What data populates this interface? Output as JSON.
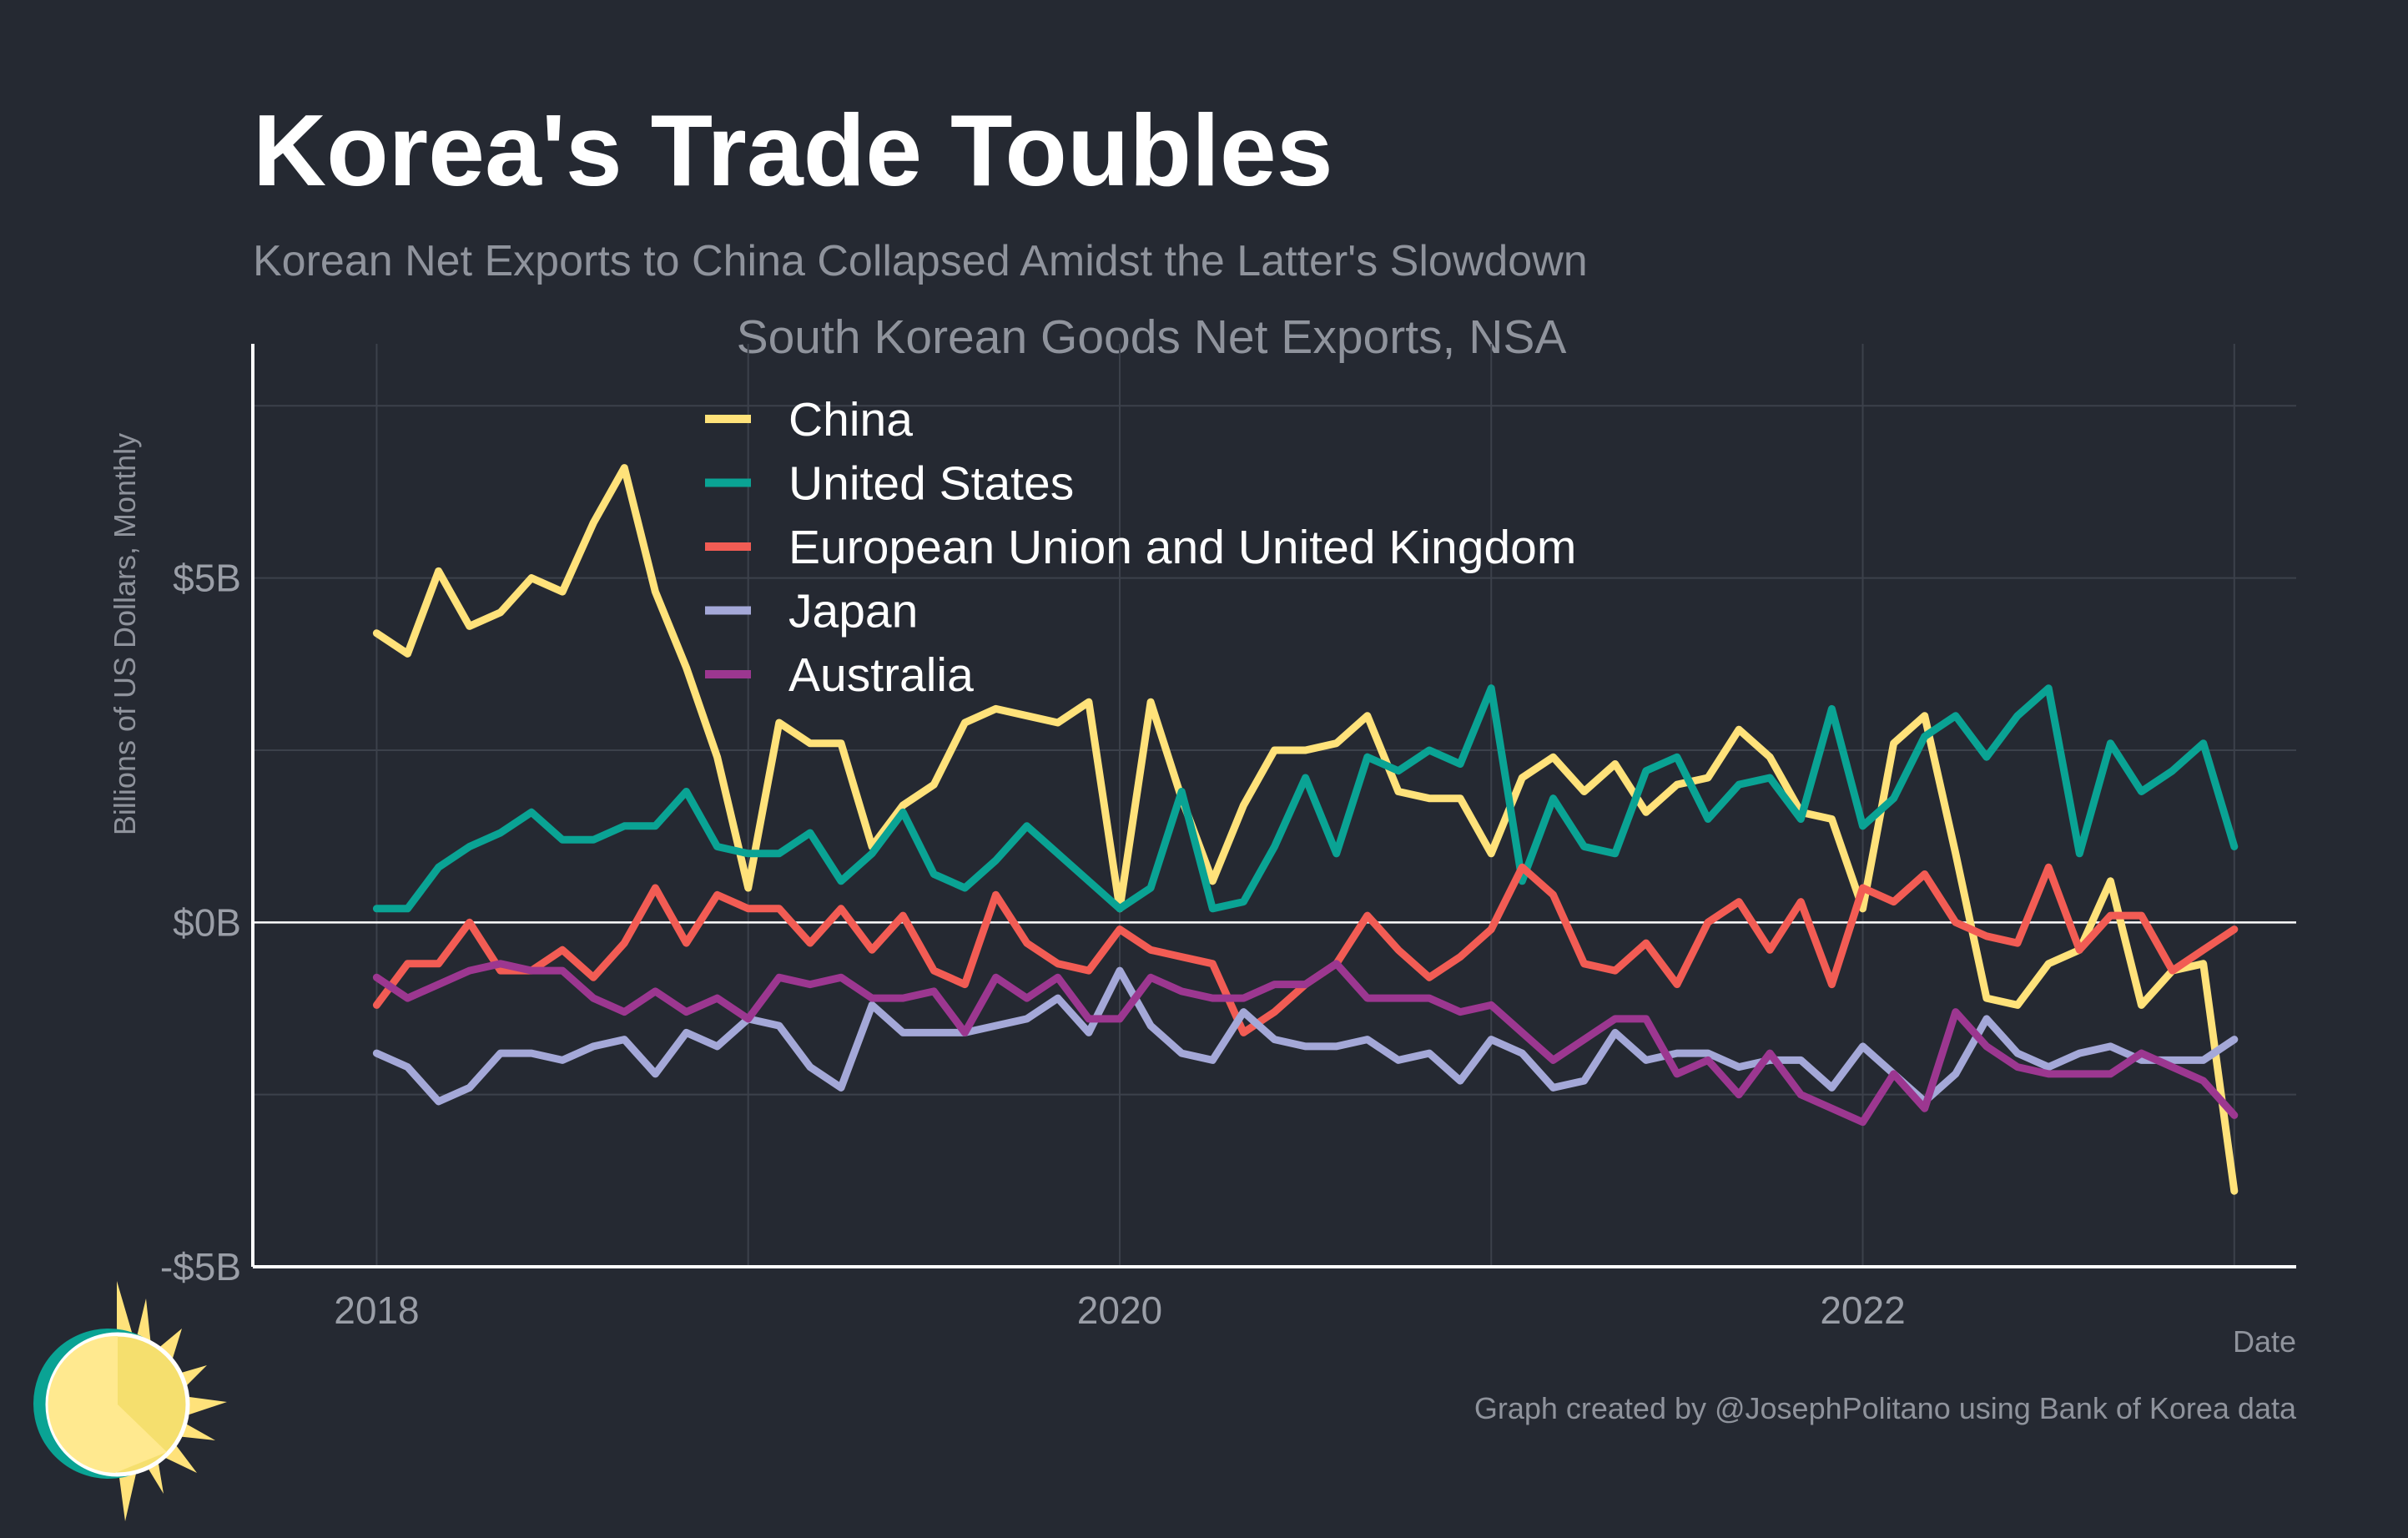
{
  "title": "Korea's Trade Toubles",
  "subtitle": "Korean Net Exports to China Collapsed Amidst the Latter's Slowdown",
  "caption": "Graph created by @JosephPolitano using Bank of Korea data",
  "colors": {
    "background": "#252932",
    "china": "#ffe27a",
    "united_states": "#0aa394",
    "eu_uk": "#f25c54",
    "japan": "#a4a8d8",
    "australia": "#9c3790"
  },
  "chart_data": {
    "type": "line",
    "title": "South Korean Goods Net Exports, NSA",
    "xlabel": "Date",
    "ylabel": "Billions of US Dollars, Monthly",
    "x_start": "2018-01",
    "x_end": "2023-01",
    "xlim": [
      "2017-09",
      "2023-03"
    ],
    "xticks": [
      {
        "value": "2018-01",
        "label": "2018"
      },
      {
        "value": "2020-01",
        "label": "2020"
      },
      {
        "value": "2022-01",
        "label": "2022"
      }
    ],
    "ylim": [
      -5,
      8.4
    ],
    "yticks": [
      {
        "value": -5,
        "label": "-$5B"
      },
      {
        "value": 0,
        "label": "$0B"
      },
      {
        "value": 5,
        "label": "$5B"
      }
    ],
    "grid": true,
    "legend_position": "top-center",
    "series": [
      {
        "name": "China",
        "color": "#ffe27a",
        "values": [
          4.2,
          3.9,
          5.1,
          4.3,
          4.5,
          5.0,
          4.8,
          5.8,
          6.6,
          4.8,
          3.7,
          2.4,
          0.5,
          2.9,
          2.6,
          2.6,
          1.1,
          1.7,
          2.0,
          2.9,
          3.1,
          3.0,
          2.9,
          3.2,
          0.2,
          3.2,
          1.8,
          0.6,
          1.7,
          2.5,
          2.5,
          2.6,
          3.0,
          1.9,
          1.8,
          1.8,
          1.0,
          2.1,
          2.4,
          1.9,
          2.3,
          1.6,
          2.0,
          2.1,
          2.8,
          2.4,
          1.6,
          1.5,
          0.2,
          2.6,
          3.0,
          1.0,
          -1.1,
          -1.2,
          -0.6,
          -0.4,
          0.6,
          -1.2,
          -0.7,
          -0.6,
          -3.9
        ]
      },
      {
        "name": "United States",
        "color": "#0aa394",
        "values": [
          0.2,
          0.2,
          0.8,
          1.1,
          1.3,
          1.6,
          1.2,
          1.2,
          1.4,
          1.4,
          1.9,
          1.1,
          1.0,
          1.0,
          1.3,
          0.6,
          1.0,
          1.6,
          0.7,
          0.5,
          0.9,
          1.4,
          1.0,
          0.6,
          0.2,
          0.5,
          1.9,
          0.2,
          0.3,
          1.1,
          2.1,
          1.0,
          2.4,
          2.2,
          2.5,
          2.3,
          3.4,
          0.6,
          1.8,
          1.1,
          1.0,
          2.2,
          2.4,
          1.5,
          2.0,
          2.1,
          1.5,
          3.1,
          1.4,
          1.8,
          2.7,
          3.0,
          2.4,
          3.0,
          3.4,
          1.0,
          2.6,
          1.9,
          2.2,
          2.6,
          1.1
        ]
      },
      {
        "name": "European Union and United Kingdom",
        "color": "#f25c54",
        "values": [
          -1.2,
          -0.6,
          -0.6,
          0.0,
          -0.7,
          -0.7,
          -0.4,
          -0.8,
          -0.3,
          0.5,
          -0.3,
          0.4,
          0.2,
          0.2,
          -0.3,
          0.2,
          -0.4,
          0.1,
          -0.7,
          -0.9,
          0.4,
          -0.3,
          -0.6,
          -0.7,
          -0.1,
          -0.4,
          -0.5,
          -0.6,
          -1.6,
          -1.3,
          -0.9,
          -0.6,
          0.1,
          -0.4,
          -0.8,
          -0.5,
          -0.1,
          0.8,
          0.4,
          -0.6,
          -0.7,
          -0.3,
          -0.9,
          0.0,
          0.3,
          -0.4,
          0.3,
          -0.9,
          0.5,
          0.3,
          0.7,
          0.0,
          -0.2,
          -0.3,
          0.8,
          -0.4,
          0.1,
          0.1,
          -0.7,
          -0.4,
          -0.1
        ]
      },
      {
        "name": "Japan",
        "color": "#a4a8d8",
        "values": [
          -1.9,
          -2.1,
          -2.6,
          -2.4,
          -1.9,
          -1.9,
          -2.0,
          -1.8,
          -1.7,
          -2.2,
          -1.6,
          -1.8,
          -1.4,
          -1.5,
          -2.1,
          -2.4,
          -1.2,
          -1.6,
          -1.6,
          -1.6,
          -1.5,
          -1.4,
          -1.1,
          -1.6,
          -0.7,
          -1.5,
          -1.9,
          -2.0,
          -1.3,
          -1.7,
          -1.8,
          -1.8,
          -1.7,
          -2.0,
          -1.9,
          -2.3,
          -1.7,
          -1.9,
          -2.4,
          -2.3,
          -1.6,
          -2.0,
          -1.9,
          -1.9,
          -2.1,
          -2.0,
          -2.0,
          -2.4,
          -1.8,
          -2.2,
          -2.6,
          -2.2,
          -1.4,
          -1.9,
          -2.1,
          -1.9,
          -1.8,
          -2.0,
          -2.0,
          -2.0,
          -1.7
        ]
      },
      {
        "name": "Australia",
        "color": "#9c3790",
        "values": [
          -0.8,
          -1.1,
          -0.9,
          -0.7,
          -0.6,
          -0.7,
          -0.7,
          -1.1,
          -1.3,
          -1.0,
          -1.3,
          -1.1,
          -1.4,
          -0.8,
          -0.9,
          -0.8,
          -1.1,
          -1.1,
          -1.0,
          -1.6,
          -0.8,
          -1.1,
          -0.8,
          -1.4,
          -1.4,
          -0.8,
          -1.0,
          -1.1,
          -1.1,
          -0.9,
          -0.9,
          -0.6,
          -1.1,
          -1.1,
          -1.1,
          -1.3,
          -1.2,
          -1.6,
          -2.0,
          -1.7,
          -1.4,
          -1.4,
          -2.2,
          -2.0,
          -2.5,
          -1.9,
          -2.5,
          -2.7,
          -2.9,
          -2.2,
          -2.7,
          -1.3,
          -1.8,
          -2.1,
          -2.2,
          -2.2,
          -2.2,
          -1.9,
          -2.1,
          -2.3,
          -2.8
        ]
      }
    ]
  }
}
